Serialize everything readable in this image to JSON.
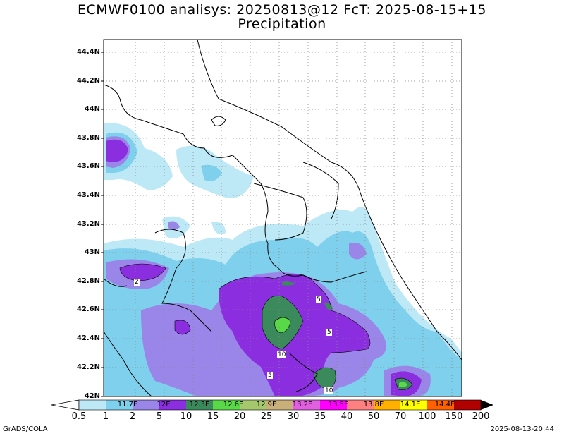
{
  "header": {
    "line1": "ECMWF0100 analisys: 20250813@12 FcT: 2025-08-15+15",
    "line2": "Precipitation"
  },
  "y_axis": {
    "ticks": [
      "44.4N",
      "44.2N",
      "44N",
      "43.8N",
      "43.6N",
      "43.4N",
      "43.2N",
      "43N",
      "42.8N",
      "42.6N",
      "42.4N",
      "42.2N",
      "42N"
    ]
  },
  "x_axis": {
    "ticks": [
      "11.7E",
      "12E",
      "12.3E",
      "12.6E",
      "12.9E",
      "13.2E",
      "13.5E",
      "13.8E",
      "14.1E",
      "14.4E"
    ]
  },
  "colorbar": {
    "thresholds": [
      "0.5",
      "1",
      "2",
      "5",
      "10",
      "15",
      "20",
      "25",
      "30",
      "35",
      "40",
      "50",
      "70",
      "100",
      "150",
      "200"
    ],
    "colors": [
      "#ffffff",
      "#bde8f5",
      "#7fd0ec",
      "#9a86e8",
      "#8a2ee0",
      "#3b8a5c",
      "#59d848",
      "#a6c86c",
      "#c9b07a",
      "#e060e0",
      "#ff00ff",
      "#ff8080",
      "#ffb000",
      "#ffff00",
      "#ff6000",
      "#ff0000",
      "#b00000"
    ]
  },
  "contour_labels": [
    "2",
    "5",
    "5",
    "10",
    "5",
    "10"
  ],
  "footer": {
    "left": "GrADS/COLA",
    "right": "2025-08-13-20:44"
  }
}
